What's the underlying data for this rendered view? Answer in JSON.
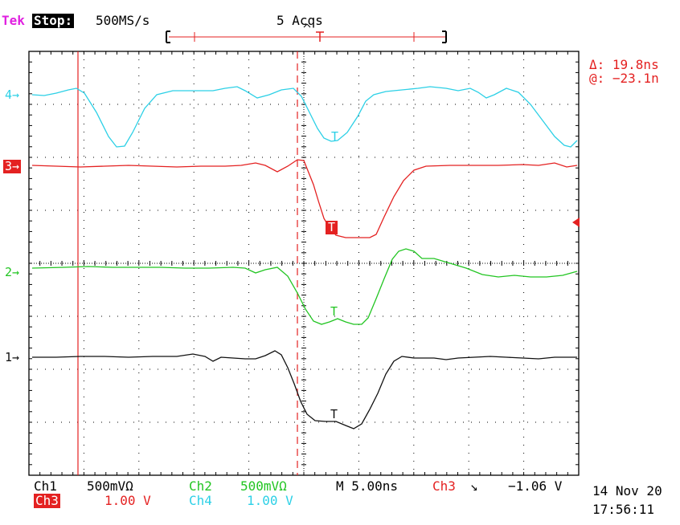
{
  "header": {
    "brand": "Tek",
    "state": "Stop:",
    "sample_rate": "500MS/s",
    "acqs": "5 Acqs"
  },
  "cursor_readout": {
    "delta": "Δ: 19.8ns",
    "at": "@: −23.1n"
  },
  "channel_markers": [
    {
      "label": "4",
      "color": "#2cd0e6"
    },
    {
      "label": "3",
      "color": "#e42121"
    },
    {
      "label": "2",
      "color": "#22c522"
    },
    {
      "label": "1",
      "color": "#111111"
    }
  ],
  "trigger_marks": [
    "T",
    "T",
    "T",
    "T"
  ],
  "footer": {
    "ch1": "Ch1",
    "ch1_scale": "500mVΩ",
    "ch2": "Ch2",
    "ch2_scale": "500mVΩ",
    "timebase": "M 5.00ns",
    "trig_source": "Ch3",
    "trig_slope": "↘",
    "trig_level": "−1.06 V",
    "ch3": "Ch3",
    "ch3_scale": "1.00 V",
    "ch4": "Ch4",
    "ch4_scale": "1.00 V",
    "date": "14 Nov 20",
    "time": "17:56:11"
  },
  "colors": {
    "ch1": "#111111",
    "ch2": "#22c522",
    "ch3": "#e42121",
    "ch4": "#2cd0e6",
    "tek": "#e020e0"
  }
}
